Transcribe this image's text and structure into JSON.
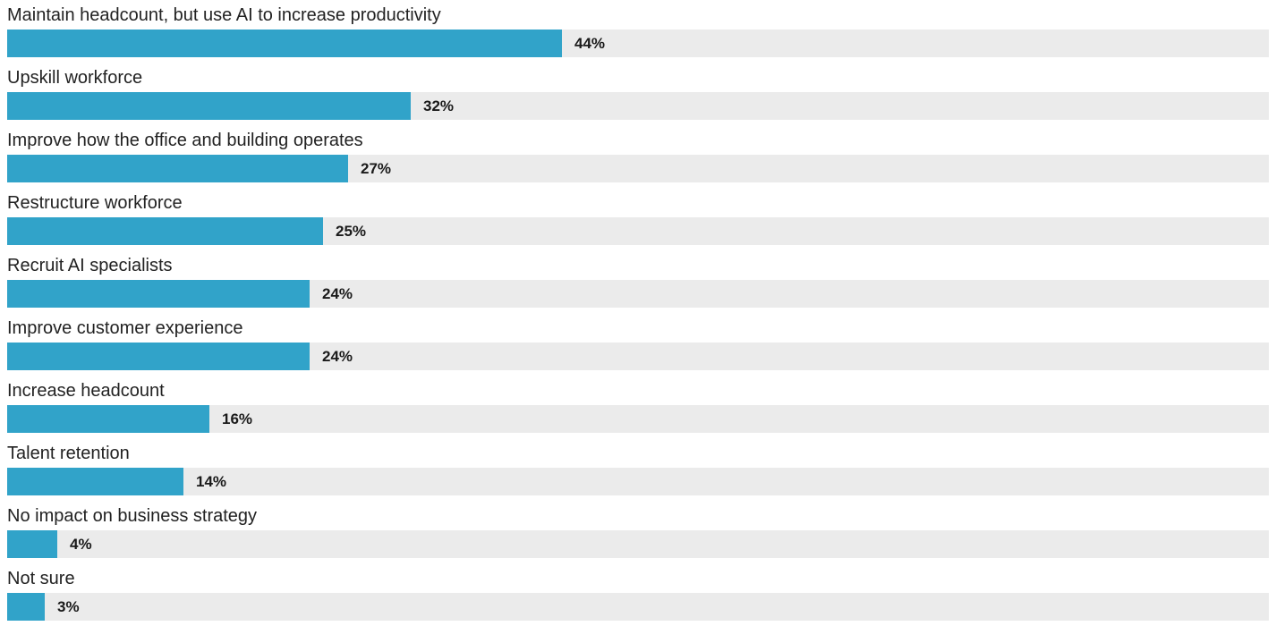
{
  "colors": {
    "bar": "#31a3c9",
    "track": "#ebebeb",
    "text": "#222222"
  },
  "chart_data": {
    "type": "bar",
    "orientation": "horizontal",
    "title": "",
    "xlabel": "",
    "ylabel": "",
    "xlim": [
      0,
      100
    ],
    "unit": "%",
    "grid": false,
    "categories": [
      "Maintain headcount, but use AI to increase productivity",
      "Upskill workforce",
      "Improve how the office and building operates",
      "Restructure workforce",
      "Recruit AI specialists",
      "Improve customer experience",
      "Increase headcount",
      "Talent retention",
      "No impact on business strategy",
      "Not sure"
    ],
    "values": [
      44,
      32,
      27,
      25,
      24,
      24,
      16,
      14,
      4,
      3
    ],
    "value_labels": [
      "44%",
      "32%",
      "27%",
      "25%",
      "24%",
      "24%",
      "16%",
      "14%",
      "4%",
      "3%"
    ]
  }
}
